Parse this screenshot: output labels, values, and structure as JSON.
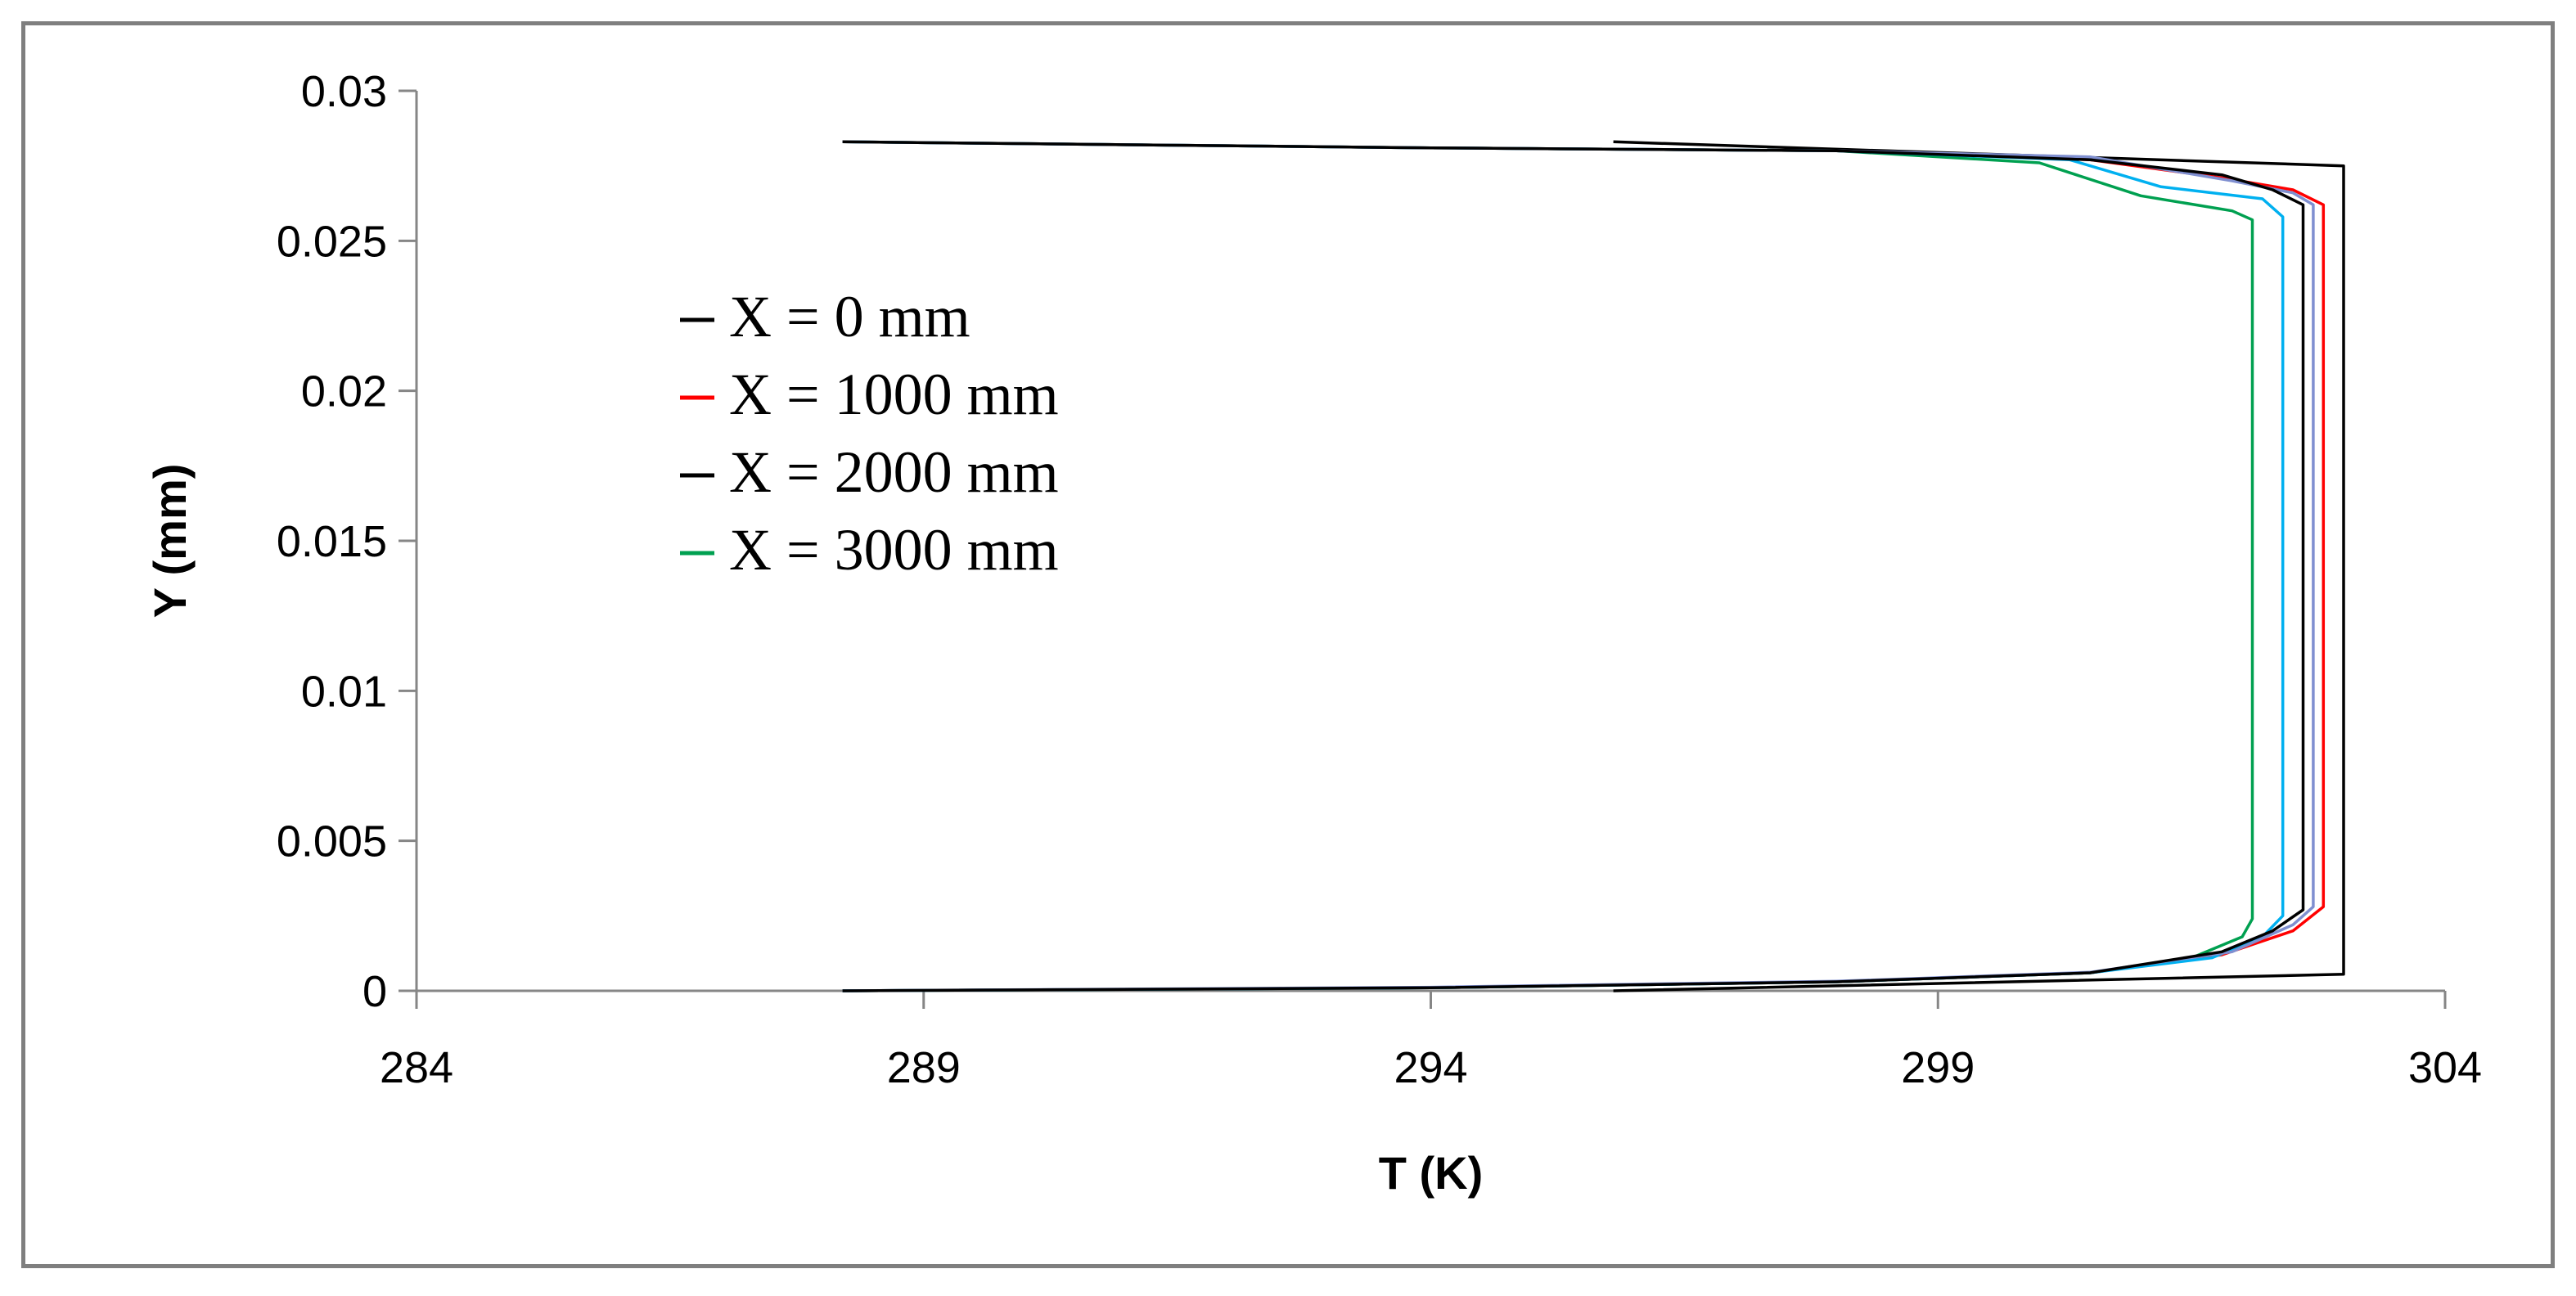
{
  "chart_data": {
    "type": "line",
    "title": "",
    "xlabel": "T (K)",
    "ylabel": "Y (mm)",
    "xlim": [
      284,
      304
    ],
    "ylim": [
      0,
      0.03
    ],
    "x_ticks": [
      "284",
      "289",
      "294",
      "299",
      "304"
    ],
    "y_ticks": [
      "0",
      "0.005",
      "0.01",
      "0.015",
      "0.02",
      "0.025",
      "0.03"
    ],
    "grid": false,
    "legend_position": "upper-left inside plot",
    "series": [
      {
        "name": "X = 0       mm",
        "color": "#000000",
        "points": [
          [
            295.8,
            0.0
          ],
          [
            303.0,
            0.00055
          ],
          [
            303.0,
            0.0275
          ],
          [
            295.8,
            0.0283
          ]
        ]
      },
      {
        "name": "X = 1000 mm",
        "color": "#ff0000",
        "points": [
          [
            288.2,
            0.0
          ],
          [
            294.0,
            0.0001
          ],
          [
            298.0,
            0.0003
          ],
          [
            300.5,
            0.0006
          ],
          [
            301.8,
            0.0012
          ],
          [
            302.5,
            0.002
          ],
          [
            302.8,
            0.0028
          ],
          [
            302.8,
            0.025
          ],
          [
            302.8,
            0.0262
          ],
          [
            302.5,
            0.0267
          ],
          [
            301.8,
            0.0271
          ],
          [
            300.5,
            0.0277
          ],
          [
            298.0,
            0.028
          ],
          [
            294.0,
            0.0281
          ],
          [
            288.2,
            0.0283
          ]
        ]
      },
      {
        "name": "X = 2000 mm",
        "color": "#000000",
        "points": [
          [
            288.2,
            0.0
          ],
          [
            294.0,
            0.0001
          ],
          [
            298.0,
            0.0003
          ],
          [
            300.5,
            0.0006
          ],
          [
            301.8,
            0.0013
          ],
          [
            302.3,
            0.002
          ],
          [
            302.6,
            0.0027
          ],
          [
            302.6,
            0.025
          ],
          [
            302.6,
            0.0262
          ],
          [
            302.3,
            0.0267
          ],
          [
            301.8,
            0.0272
          ],
          [
            300.5,
            0.0277
          ],
          [
            298.0,
            0.028
          ],
          [
            294.0,
            0.0281
          ],
          [
            288.2,
            0.0283
          ]
        ]
      },
      {
        "name": "X = 3000 mm",
        "color": "#00a050",
        "points": [
          [
            288.2,
            0.0
          ],
          [
            294.0,
            0.0001
          ],
          [
            298.0,
            0.0003
          ],
          [
            300.5,
            0.0006
          ],
          [
            301.5,
            0.0011
          ],
          [
            302.0,
            0.0018
          ],
          [
            302.1,
            0.0024
          ],
          [
            302.1,
            0.025
          ],
          [
            302.1,
            0.0257
          ],
          [
            301.9,
            0.026
          ],
          [
            301.0,
            0.0265
          ],
          [
            300.0,
            0.0276
          ],
          [
            298.0,
            0.028
          ],
          [
            294.0,
            0.0281
          ],
          [
            288.2,
            0.0283
          ]
        ]
      },
      {
        "name": "",
        "color": "#00b0f0",
        "points": [
          [
            288.2,
            0.0
          ],
          [
            294.0,
            0.0001
          ],
          [
            298.0,
            0.0003
          ],
          [
            300.5,
            0.0006
          ],
          [
            301.7,
            0.0011
          ],
          [
            302.2,
            0.0018
          ],
          [
            302.4,
            0.0025
          ],
          [
            302.4,
            0.025
          ],
          [
            302.4,
            0.0258
          ],
          [
            302.2,
            0.0264
          ],
          [
            301.2,
            0.0268
          ],
          [
            300.3,
            0.0277
          ],
          [
            298.0,
            0.028
          ],
          [
            294.0,
            0.0281
          ],
          [
            288.2,
            0.0283
          ]
        ]
      },
      {
        "name": "",
        "color": "#7f8fd0",
        "points": [
          [
            288.2,
            0.0
          ],
          [
            294.0,
            0.00012
          ],
          [
            298.0,
            0.00032
          ],
          [
            300.5,
            0.00062
          ],
          [
            301.9,
            0.0013
          ],
          [
            302.5,
            0.0022
          ],
          [
            302.7,
            0.0028
          ],
          [
            302.7,
            0.025
          ],
          [
            302.7,
            0.0262
          ],
          [
            302.5,
            0.0266
          ],
          [
            301.9,
            0.027
          ],
          [
            300.5,
            0.0278
          ],
          [
            298.0,
            0.028
          ],
          [
            294.0,
            0.0281
          ],
          [
            288.2,
            0.0283
          ]
        ]
      }
    ]
  }
}
